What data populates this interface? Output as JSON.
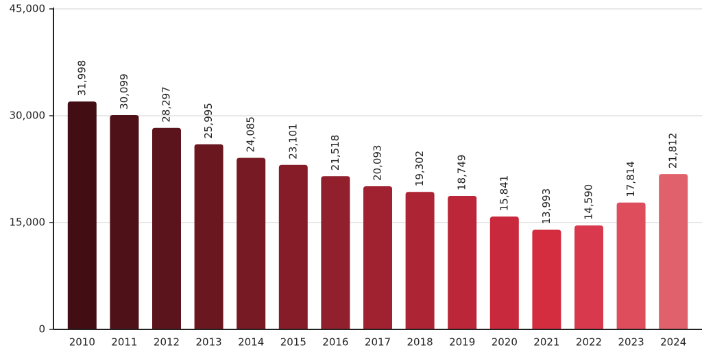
{
  "chart_data": {
    "type": "bar",
    "categories": [
      "2010",
      "2011",
      "2012",
      "2013",
      "2014",
      "2015",
      "2016",
      "2017",
      "2018",
      "2019",
      "2020",
      "2021",
      "2022",
      "2023",
      "2024"
    ],
    "values": [
      31998,
      30099,
      28297,
      25995,
      24085,
      23101,
      21518,
      20093,
      19302,
      18749,
      15841,
      13993,
      14590,
      17814,
      21812
    ],
    "value_labels": [
      "31,998",
      "30,099",
      "28,297",
      "25,995",
      "24,085",
      "23,101",
      "21,518",
      "20,093",
      "19,302",
      "18,749",
      "15,841",
      "13,993",
      "14,590",
      "17,814",
      "21,812"
    ],
    "colors": [
      "#420e14",
      "#4f1118",
      "#5c141c",
      "#6a1720",
      "#771a24",
      "#851c28",
      "#921f2c",
      "#a02130",
      "#ad2434",
      "#bb2638",
      "#c9293c",
      "#d42d40",
      "#d9394c",
      "#dd4d5c",
      "#e0606b"
    ],
    "ylim": [
      0,
      45000
    ],
    "yticks": [
      0,
      {
        "value": 15000,
        "label": "15,000"
      },
      {
        "value": 30000,
        "label": "30,000"
      },
      {
        "value": 45000,
        "label": "45,000"
      }
    ],
    "grid": true
  }
}
